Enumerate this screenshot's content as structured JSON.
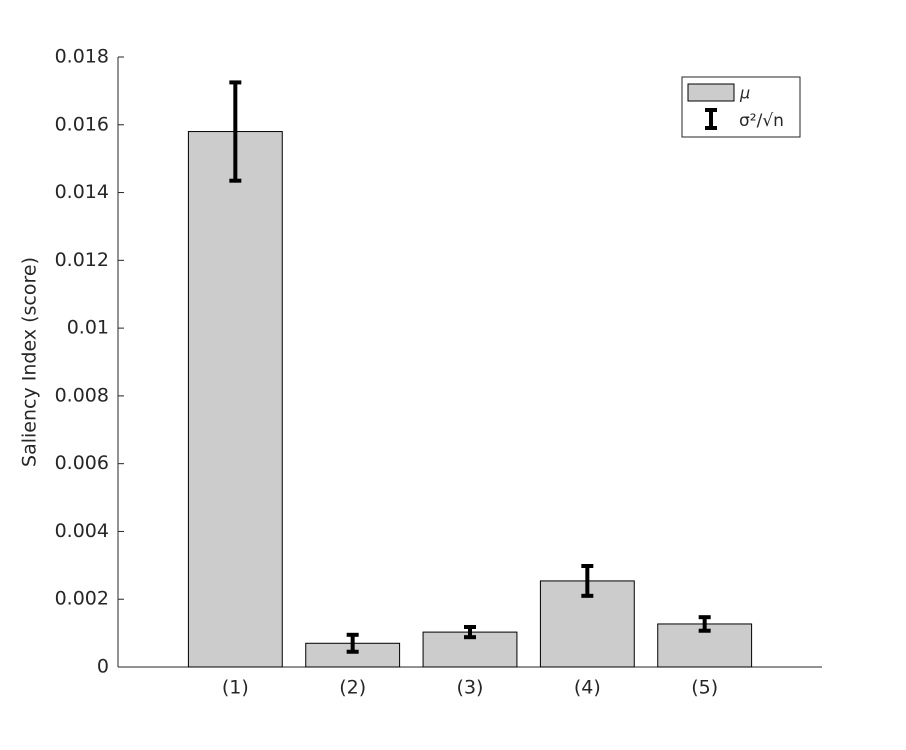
{
  "chart_data": {
    "type": "bar",
    "y_label": "Saliency Index (score)",
    "categories": [
      "(1)",
      "(2)",
      "(3)",
      "(4)",
      "(5)"
    ],
    "series": [
      {
        "name": "μ",
        "color": "#cccccc",
        "values": [
          0.0158,
          0.0007,
          0.00103,
          0.00254,
          0.00127
        ],
        "errors": [
          0.00145,
          0.00025,
          0.00015,
          0.00044,
          0.0002
        ],
        "error_name": "σ²/√n"
      }
    ],
    "ylim": [
      0,
      0.018
    ],
    "yticks": [
      0,
      0.002,
      0.004,
      0.006,
      0.008,
      0.01,
      0.012,
      0.014,
      0.016,
      0.018
    ],
    "grid": false,
    "legend": "upper right"
  }
}
